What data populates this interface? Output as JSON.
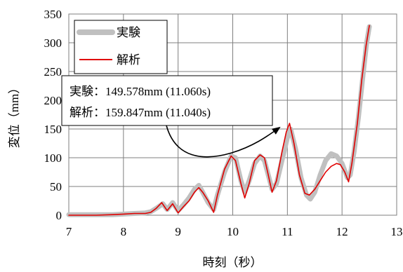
{
  "chart_data": {
    "type": "line",
    "title": "",
    "xlabel": "時刻（秒）",
    "ylabel": "変位（mm）",
    "xlim": [
      7,
      13
    ],
    "ylim": [
      0,
      350
    ],
    "x_ticks": [
      "7",
      "8",
      "9",
      "10",
      "11",
      "12",
      "13"
    ],
    "y_ticks": [
      "0",
      "50",
      "100",
      "150",
      "200",
      "250",
      "300",
      "350"
    ],
    "grid": true,
    "legend_position": "top-left",
    "series": [
      {
        "name": "実験",
        "color": "#c0c0c0",
        "points": [
          [
            7.0,
            1
          ],
          [
            7.5,
            1
          ],
          [
            7.8,
            1
          ],
          [
            8.0,
            2
          ],
          [
            8.2,
            3
          ],
          [
            8.4,
            4
          ],
          [
            8.5,
            6
          ],
          [
            8.6,
            12
          ],
          [
            8.72,
            20
          ],
          [
            8.8,
            10
          ],
          [
            8.9,
            22
          ],
          [
            9.0,
            8
          ],
          [
            9.1,
            18
          ],
          [
            9.2,
            30
          ],
          [
            9.3,
            45
          ],
          [
            9.38,
            52
          ],
          [
            9.45,
            40
          ],
          [
            9.55,
            22
          ],
          [
            9.65,
            10
          ],
          [
            9.72,
            35
          ],
          [
            9.85,
            75
          ],
          [
            9.97,
            103
          ],
          [
            10.05,
            100
          ],
          [
            10.15,
            60
          ],
          [
            10.22,
            40
          ],
          [
            10.3,
            60
          ],
          [
            10.4,
            90
          ],
          [
            10.5,
            103
          ],
          [
            10.58,
            95
          ],
          [
            10.65,
            70
          ],
          [
            10.72,
            45
          ],
          [
            10.8,
            55
          ],
          [
            10.9,
            95
          ],
          [
            11.0,
            135
          ],
          [
            11.06,
            149.578
          ],
          [
            11.15,
            115
          ],
          [
            11.25,
            65
          ],
          [
            11.35,
            35
          ],
          [
            11.42,
            28
          ],
          [
            11.5,
            40
          ],
          [
            11.6,
            70
          ],
          [
            11.7,
            95
          ],
          [
            11.8,
            107
          ],
          [
            11.9,
            103
          ],
          [
            12.0,
            90
          ],
          [
            12.1,
            65
          ],
          [
            12.15,
            70
          ],
          [
            12.22,
            110
          ],
          [
            12.3,
            170
          ],
          [
            12.38,
            240
          ],
          [
            12.45,
            300
          ],
          [
            12.5,
            328
          ]
        ]
      },
      {
        "name": "解析",
        "color": "#e00000",
        "points": [
          [
            7.0,
            0
          ],
          [
            7.5,
            0
          ],
          [
            7.8,
            1
          ],
          [
            8.0,
            2
          ],
          [
            8.2,
            3
          ],
          [
            8.4,
            3
          ],
          [
            8.5,
            5
          ],
          [
            8.6,
            12
          ],
          [
            8.7,
            22
          ],
          [
            8.8,
            8
          ],
          [
            8.9,
            20
          ],
          [
            9.0,
            4
          ],
          [
            9.1,
            15
          ],
          [
            9.2,
            25
          ],
          [
            9.3,
            40
          ],
          [
            9.38,
            48
          ],
          [
            9.45,
            40
          ],
          [
            9.55,
            25
          ],
          [
            9.65,
            5
          ],
          [
            9.72,
            35
          ],
          [
            9.85,
            80
          ],
          [
            9.97,
            103
          ],
          [
            10.05,
            95
          ],
          [
            10.15,
            55
          ],
          [
            10.22,
            30
          ],
          [
            10.3,
            55
          ],
          [
            10.4,
            95
          ],
          [
            10.5,
            105
          ],
          [
            10.58,
            100
          ],
          [
            10.65,
            70
          ],
          [
            10.72,
            40
          ],
          [
            10.8,
            60
          ],
          [
            10.9,
            110
          ],
          [
            10.98,
            145
          ],
          [
            11.04,
            159.847
          ],
          [
            11.12,
            125
          ],
          [
            11.22,
            70
          ],
          [
            11.32,
            38
          ],
          [
            11.4,
            35
          ],
          [
            11.5,
            45
          ],
          [
            11.6,
            60
          ],
          [
            11.7,
            75
          ],
          [
            11.8,
            85
          ],
          [
            11.9,
            90
          ],
          [
            11.97,
            88
          ],
          [
            12.05,
            75
          ],
          [
            12.12,
            58
          ],
          [
            12.18,
            90
          ],
          [
            12.28,
            160
          ],
          [
            12.36,
            235
          ],
          [
            12.44,
            295
          ],
          [
            12.5,
            330
          ]
        ]
      }
    ],
    "annotation": {
      "lines": [
        "実験：149.578mm (11.060s)",
        "解析：159.847mm (11.040s)"
      ],
      "arrow_target": [
        11.04,
        159.847
      ]
    }
  }
}
